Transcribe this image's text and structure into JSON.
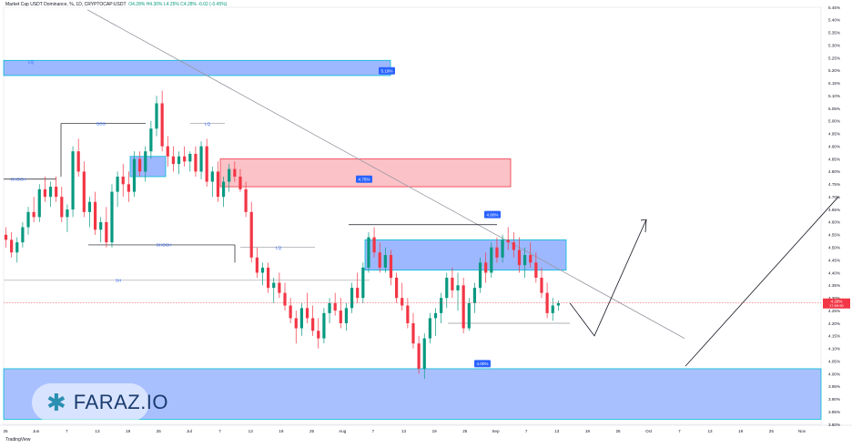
{
  "header": {
    "symbol": "Market Cap USDT Dominance, %, 1D, CRYPTOCAP:USDT",
    "ohlc": "O4.28% H4.30% L4.25% C4.28% -0.02 (-0.45%)"
  },
  "footer": {
    "brand": "TradingView"
  },
  "logo": {
    "text": "FARAZ.IO"
  },
  "chart_data": {
    "type": "candlestick",
    "title": "Market Cap USDT Dominance, %, 1D, CRYPTOCAP:USDT",
    "ylim": [
      3.8,
      5.45
    ],
    "y_ticks": [
      "5.45%",
      "5.40%",
      "5.35%",
      "5.30%",
      "5.25%",
      "5.20%",
      "5.15%",
      "5.10%",
      "5.05%",
      "5.00%",
      "4.95%",
      "4.90%",
      "4.85%",
      "4.80%",
      "4.75%",
      "4.70%",
      "4.65%",
      "4.60%",
      "4.55%",
      "4.50%",
      "4.45%",
      "4.40%",
      "4.35%",
      "4.30%",
      "4.25%",
      "4.20%",
      "4.15%",
      "4.10%",
      "4.05%",
      "4.00%",
      "3.95%",
      "3.90%",
      "3.85%",
      "3.80%"
    ],
    "x_ticks": [
      "25",
      "Jun",
      "7",
      "13",
      "19",
      "25",
      "Jul",
      "7",
      "13",
      "19",
      "25",
      "Aug",
      "7",
      "13",
      "19",
      "25",
      "Sep",
      "7",
      "13",
      "19",
      "25",
      "Oct",
      "7",
      "13",
      "19",
      "25",
      "Nov"
    ],
    "last_price_label": "4.28%",
    "last_price_time": "17:09:50",
    "colors": {
      "up": "#089981",
      "down": "#f23645",
      "zone_blue": "#2962ff",
      "zone_red": "#f23645",
      "label_bg": "#2962ff"
    },
    "zone_labels": [
      "5.19%",
      "4.75%",
      "4.60%",
      "4.00%"
    ],
    "annotations": [
      "LQ",
      "BOS",
      "LQ",
      "CHOCH",
      "CHOCH",
      "LQ",
      "SH"
    ],
    "candles": [
      [
        4.55,
        4.58,
        4.5,
        4.53
      ],
      [
        4.53,
        4.56,
        4.46,
        4.48
      ],
      [
        4.48,
        4.54,
        4.44,
        4.52
      ],
      [
        4.52,
        4.6,
        4.5,
        4.58
      ],
      [
        4.58,
        4.66,
        4.55,
        4.64
      ],
      [
        4.64,
        4.7,
        4.6,
        4.62
      ],
      [
        4.62,
        4.75,
        4.6,
        4.73
      ],
      [
        4.73,
        4.78,
        4.68,
        4.7
      ],
      [
        4.7,
        4.76,
        4.66,
        4.74
      ],
      [
        4.74,
        4.78,
        4.68,
        4.7
      ],
      [
        4.7,
        4.74,
        4.6,
        4.62
      ],
      [
        4.62,
        4.67,
        4.56,
        4.65
      ],
      [
        4.65,
        4.9,
        4.62,
        4.88
      ],
      [
        4.88,
        4.93,
        4.78,
        4.8
      ],
      [
        4.8,
        4.84,
        4.62,
        4.64
      ],
      [
        4.64,
        4.7,
        4.58,
        4.68
      ],
      [
        4.68,
        4.72,
        4.55,
        4.57
      ],
      [
        4.57,
        4.62,
        4.52,
        4.6
      ],
      [
        4.6,
        4.66,
        4.5,
        4.52
      ],
      [
        4.52,
        4.75,
        4.5,
        4.72
      ],
      [
        4.72,
        4.8,
        4.66,
        4.78
      ],
      [
        4.78,
        4.83,
        4.7,
        4.75
      ],
      [
        4.75,
        4.8,
        4.68,
        4.72
      ],
      [
        4.72,
        4.88,
        4.7,
        4.85
      ],
      [
        4.85,
        4.88,
        4.78,
        4.8
      ],
      [
        4.8,
        4.9,
        4.76,
        4.88
      ],
      [
        4.88,
        5.0,
        4.85,
        4.97
      ],
      [
        4.97,
        5.1,
        4.94,
        5.07
      ],
      [
        5.07,
        5.12,
        4.88,
        4.9
      ],
      [
        4.9,
        4.94,
        4.82,
        4.86
      ],
      [
        4.86,
        4.9,
        4.8,
        4.83
      ],
      [
        4.83,
        4.88,
        4.79,
        4.86
      ],
      [
        4.86,
        4.9,
        4.82,
        4.84
      ],
      [
        4.84,
        4.88,
        4.8,
        4.87
      ],
      [
        4.87,
        4.9,
        4.78,
        4.8
      ],
      [
        4.8,
        4.92,
        4.77,
        4.9
      ],
      [
        4.9,
        4.93,
        4.74,
        4.76
      ],
      [
        4.76,
        4.82,
        4.7,
        4.8
      ],
      [
        4.8,
        4.84,
        4.68,
        4.7
      ],
      [
        4.7,
        4.78,
        4.66,
        4.76
      ],
      [
        4.76,
        4.83,
        4.72,
        4.81
      ],
      [
        4.81,
        4.84,
        4.76,
        4.78
      ],
      [
        4.78,
        4.81,
        4.72,
        4.73
      ],
      [
        4.73,
        4.76,
        4.62,
        4.64
      ],
      [
        4.64,
        4.68,
        4.44,
        4.46
      ],
      [
        4.46,
        4.5,
        4.38,
        4.4
      ],
      [
        4.4,
        4.44,
        4.35,
        4.42
      ],
      [
        4.42,
        4.44,
        4.32,
        4.34
      ],
      [
        4.34,
        4.38,
        4.28,
        4.36
      ],
      [
        4.36,
        4.4,
        4.3,
        4.32
      ],
      [
        4.32,
        4.36,
        4.25,
        4.27
      ],
      [
        4.27,
        4.3,
        4.2,
        4.22
      ],
      [
        4.22,
        4.25,
        4.12,
        4.18
      ],
      [
        4.18,
        4.28,
        4.15,
        4.26
      ],
      [
        4.26,
        4.32,
        4.2,
        4.22
      ],
      [
        4.22,
        4.27,
        4.15,
        4.17
      ],
      [
        4.17,
        4.22,
        4.1,
        4.14
      ],
      [
        4.14,
        4.26,
        4.12,
        4.24
      ],
      [
        4.24,
        4.3,
        4.2,
        4.28
      ],
      [
        4.28,
        4.32,
        4.23,
        4.25
      ],
      [
        4.25,
        4.3,
        4.18,
        4.2
      ],
      [
        4.2,
        4.28,
        4.17,
        4.26
      ],
      [
        4.26,
        4.36,
        4.24,
        4.34
      ],
      [
        4.34,
        4.4,
        4.28,
        4.3
      ],
      [
        4.3,
        4.44,
        4.28,
        4.42
      ],
      [
        4.42,
        4.56,
        4.4,
        4.54
      ],
      [
        4.54,
        4.58,
        4.46,
        4.48
      ],
      [
        4.48,
        4.52,
        4.4,
        4.42
      ],
      [
        4.42,
        4.5,
        4.4,
        4.47
      ],
      [
        4.47,
        4.49,
        4.35,
        4.38
      ],
      [
        4.38,
        4.4,
        4.28,
        4.3
      ],
      [
        4.3,
        4.36,
        4.25,
        4.27
      ],
      [
        4.27,
        4.3,
        4.18,
        4.2
      ],
      [
        4.2,
        4.24,
        4.1,
        4.12
      ],
      [
        4.12,
        4.15,
        4.0,
        4.02
      ],
      [
        4.02,
        4.16,
        3.98,
        4.14
      ],
      [
        4.14,
        4.24,
        4.12,
        4.22
      ],
      [
        4.22,
        4.26,
        4.15,
        4.24
      ],
      [
        4.24,
        4.32,
        4.2,
        4.3
      ],
      [
        4.3,
        4.4,
        4.26,
        4.38
      ],
      [
        4.38,
        4.42,
        4.3,
        4.33
      ],
      [
        4.33,
        4.4,
        4.25,
        4.35
      ],
      [
        4.35,
        4.38,
        4.16,
        4.18
      ],
      [
        4.18,
        4.3,
        4.17,
        4.28
      ],
      [
        4.28,
        4.36,
        4.24,
        4.34
      ],
      [
        4.34,
        4.46,
        4.32,
        4.44
      ],
      [
        4.44,
        4.48,
        4.36,
        4.4
      ],
      [
        4.4,
        4.52,
        4.38,
        4.5
      ],
      [
        4.5,
        4.54,
        4.44,
        4.46
      ],
      [
        4.46,
        4.55,
        4.44,
        4.53
      ],
      [
        4.53,
        4.58,
        4.49,
        4.52
      ],
      [
        4.52,
        4.56,
        4.46,
        4.49
      ],
      [
        4.49,
        4.54,
        4.4,
        4.43
      ],
      [
        4.43,
        4.5,
        4.38,
        4.47
      ],
      [
        4.47,
        4.52,
        4.42,
        4.44
      ],
      [
        4.44,
        4.48,
        4.36,
        4.38
      ],
      [
        4.38,
        4.42,
        4.3,
        4.32
      ],
      [
        4.32,
        4.36,
        4.22,
        4.24
      ],
      [
        4.24,
        4.3,
        4.21,
        4.27
      ],
      [
        4.27,
        4.29,
        4.25,
        4.28
      ]
    ]
  }
}
